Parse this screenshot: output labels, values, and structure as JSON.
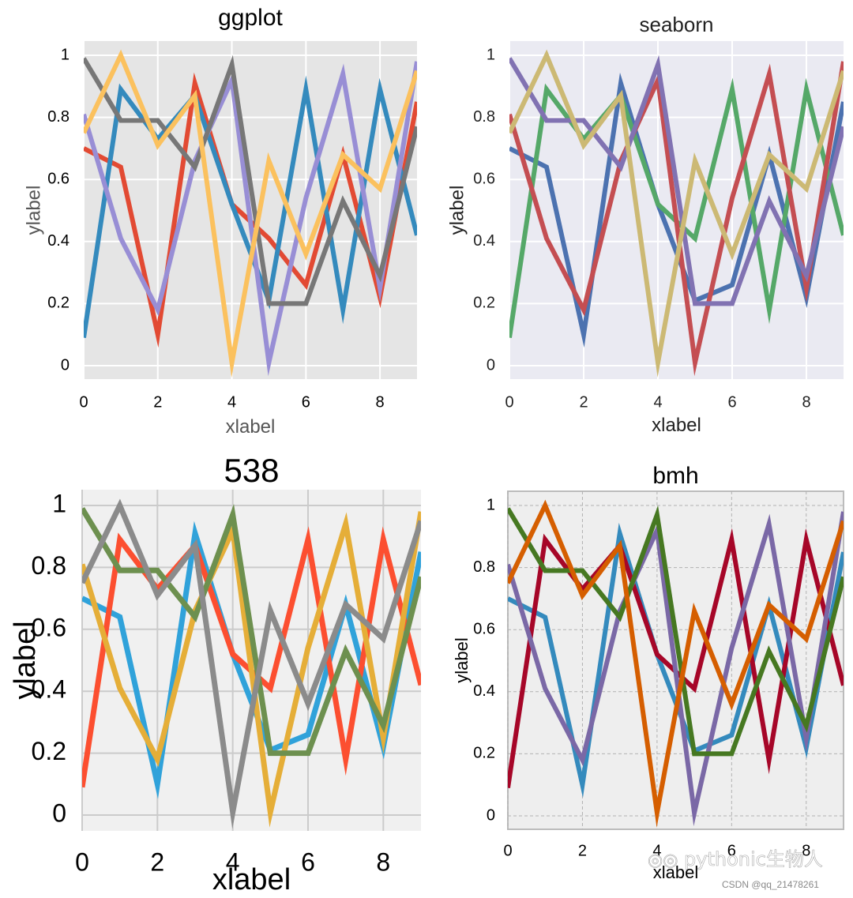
{
  "chart_data": [
    {
      "type": "line",
      "title": "ggplot",
      "xlabel": "xlabel",
      "ylabel": "ylabel",
      "xlim": [
        0,
        9
      ],
      "ylim": [
        0,
        1
      ],
      "xticks": [
        "0",
        "2",
        "4",
        "6",
        "8"
      ],
      "yticks": [
        "0",
        "0.2",
        "0.4",
        "0.6",
        "0.8",
        "1"
      ],
      "grid": true,
      "x": [
        0,
        1,
        2,
        3,
        4,
        5,
        6,
        7,
        8,
        9
      ],
      "series": [
        {
          "values": [
            0.7,
            0.64,
            0.1,
            0.91,
            0.52,
            0.41,
            0.26,
            0.68,
            0.22,
            0.85
          ]
        },
        {
          "values": [
            0.09,
            0.89,
            0.73,
            0.87,
            0.52,
            0.21,
            0.89,
            0.18,
            0.89,
            0.42
          ]
        },
        {
          "values": [
            0.81,
            0.41,
            0.18,
            0.66,
            0.92,
            0.01,
            0.54,
            0.94,
            0.25,
            0.98
          ]
        },
        {
          "values": [
            0.99,
            0.79,
            0.79,
            0.64,
            0.97,
            0.2,
            0.2,
            0.53,
            0.29,
            0.77
          ]
        },
        {
          "values": [
            0.75,
            1.0,
            0.71,
            0.87,
            0.01,
            0.66,
            0.36,
            0.68,
            0.57,
            0.95
          ]
        }
      ],
      "colors": [
        "#e24a33",
        "#348abd",
        "#988ed5",
        "#777777",
        "#fbc15e"
      ]
    },
    {
      "type": "line",
      "title": "seaborn",
      "xlabel": "xlabel",
      "ylabel": "ylabel",
      "xlim": [
        0,
        9
      ],
      "ylim": [
        0,
        1
      ],
      "xticks": [
        "0",
        "2",
        "4",
        "6",
        "8"
      ],
      "yticks": [
        "0",
        "0.2",
        "0.4",
        "0.6",
        "0.8",
        "1"
      ],
      "grid": true,
      "x": [
        0,
        1,
        2,
        3,
        4,
        5,
        6,
        7,
        8,
        9
      ],
      "series": [
        {
          "values": [
            0.7,
            0.64,
            0.1,
            0.91,
            0.52,
            0.21,
            0.26,
            0.68,
            0.22,
            0.85
          ]
        },
        {
          "values": [
            0.09,
            0.89,
            0.73,
            0.87,
            0.52,
            0.41,
            0.89,
            0.18,
            0.89,
            0.42
          ]
        },
        {
          "values": [
            0.81,
            0.41,
            0.18,
            0.66,
            0.92,
            0.01,
            0.54,
            0.94,
            0.25,
            0.98
          ]
        },
        {
          "values": [
            0.99,
            0.79,
            0.79,
            0.64,
            0.97,
            0.2,
            0.2,
            0.53,
            0.29,
            0.77
          ]
        },
        {
          "values": [
            0.75,
            1.0,
            0.71,
            0.87,
            0.01,
            0.66,
            0.36,
            0.68,
            0.57,
            0.95
          ]
        }
      ],
      "colors": [
        "#4c72b0",
        "#55a868",
        "#c44e52",
        "#8172b2",
        "#ccb974"
      ]
    },
    {
      "type": "line",
      "title": "538",
      "xlabel": "xlabel",
      "ylabel": "ylabel",
      "xlim": [
        0,
        9
      ],
      "ylim": [
        0,
        1
      ],
      "xticks": [
        "0",
        "2",
        "4",
        "6",
        "8"
      ],
      "yticks": [
        "0",
        "0.2",
        "0.4",
        "0.6",
        "0.8",
        "1"
      ],
      "grid": true,
      "x": [
        0,
        1,
        2,
        3,
        4,
        5,
        6,
        7,
        8,
        9
      ],
      "series": [
        {
          "values": [
            0.7,
            0.64,
            0.1,
            0.91,
            0.52,
            0.21,
            0.26,
            0.68,
            0.22,
            0.85
          ]
        },
        {
          "values": [
            0.09,
            0.89,
            0.73,
            0.87,
            0.52,
            0.41,
            0.89,
            0.18,
            0.89,
            0.42
          ]
        },
        {
          "values": [
            0.81,
            0.41,
            0.18,
            0.66,
            0.92,
            0.01,
            0.54,
            0.94,
            0.25,
            0.98
          ]
        },
        {
          "values": [
            0.99,
            0.79,
            0.79,
            0.64,
            0.97,
            0.2,
            0.2,
            0.53,
            0.29,
            0.77
          ]
        },
        {
          "values": [
            0.75,
            1.0,
            0.71,
            0.87,
            0.01,
            0.66,
            0.36,
            0.68,
            0.57,
            0.95
          ]
        }
      ],
      "colors": [
        "#30a2da",
        "#fc4f30",
        "#e5ae38",
        "#6d904f",
        "#8b8b8b"
      ]
    },
    {
      "type": "line",
      "title": "bmh",
      "xlabel": "xlabel",
      "ylabel": "ylabel",
      "xlim": [
        0,
        9
      ],
      "ylim": [
        0,
        1
      ],
      "xticks": [
        "0",
        "2",
        "4",
        "6",
        "8"
      ],
      "yticks": [
        "0",
        "0.2",
        "0.4",
        "0.6",
        "0.8",
        "1"
      ],
      "grid": true,
      "x": [
        0,
        1,
        2,
        3,
        4,
        5,
        6,
        7,
        8,
        9
      ],
      "series": [
        {
          "values": [
            0.7,
            0.64,
            0.1,
            0.91,
            0.52,
            0.21,
            0.26,
            0.68,
            0.22,
            0.85
          ]
        },
        {
          "values": [
            0.09,
            0.89,
            0.73,
            0.87,
            0.52,
            0.41,
            0.89,
            0.18,
            0.89,
            0.42
          ]
        },
        {
          "values": [
            0.81,
            0.41,
            0.18,
            0.66,
            0.92,
            0.01,
            0.54,
            0.94,
            0.25,
            0.98
          ]
        },
        {
          "values": [
            0.99,
            0.79,
            0.79,
            0.64,
            0.97,
            0.2,
            0.2,
            0.53,
            0.29,
            0.77
          ]
        },
        {
          "values": [
            0.75,
            1.0,
            0.71,
            0.87,
            0.01,
            0.66,
            0.36,
            0.68,
            0.57,
            0.95
          ]
        }
      ],
      "colors": [
        "#348abd",
        "#a60628",
        "#7a68a6",
        "#467821",
        "#d55e00"
      ]
    }
  ],
  "watermark": {
    "text": "pythonic生物人",
    "credit": "CSDN @qq_21478261"
  }
}
